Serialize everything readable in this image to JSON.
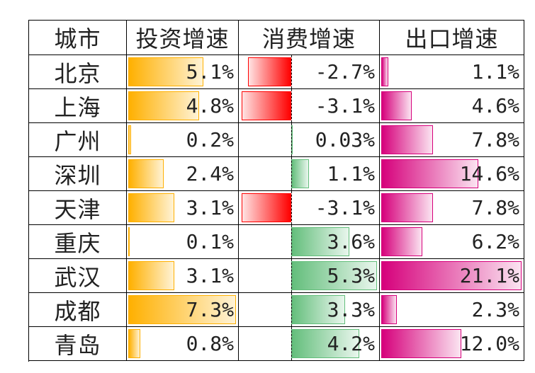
{
  "columns": [
    "城市",
    "投资增速",
    "消费增速",
    "出口增速"
  ],
  "colors": {
    "investment_bar": "#ffb000",
    "consumption_positive_bar": "#63be7b",
    "consumption_negative_bar": "#ff0000",
    "export_bar": "#d6007b"
  },
  "chart_data": {
    "type": "table",
    "categories": [
      "北京",
      "上海",
      "广州",
      "深圳",
      "天津",
      "重庆",
      "武汉",
      "成都",
      "青岛"
    ],
    "series": [
      {
        "name": "投资增速",
        "values": [
          5.1,
          4.8,
          0.2,
          2.4,
          3.1,
          0.1,
          3.1,
          7.3,
          0.8
        ],
        "labels": [
          "5.1%",
          "4.8%",
          "0.2%",
          "2.4%",
          "3.1%",
          "0.1%",
          "3.1%",
          "7.3%",
          "0.8%"
        ]
      },
      {
        "name": "消费增速",
        "values": [
          -2.7,
          -3.1,
          0.03,
          1.1,
          -3.1,
          3.6,
          5.3,
          3.3,
          4.2
        ],
        "labels": [
          "-2.7%",
          "-3.1%",
          "0.03%",
          "1.1%",
          "-3.1%",
          "3.6%",
          "5.3%",
          "3.3%",
          "4.2%"
        ]
      },
      {
        "name": "出口增速",
        "values": [
          1.1,
          4.6,
          7.8,
          14.6,
          7.8,
          6.2,
          21.1,
          2.3,
          12.0
        ],
        "labels": [
          "1.1%",
          "4.6%",
          "7.8%",
          "14.6%",
          "7.8%",
          "6.2%",
          "21.1%",
          "2.3%",
          "12.0%"
        ]
      }
    ]
  }
}
